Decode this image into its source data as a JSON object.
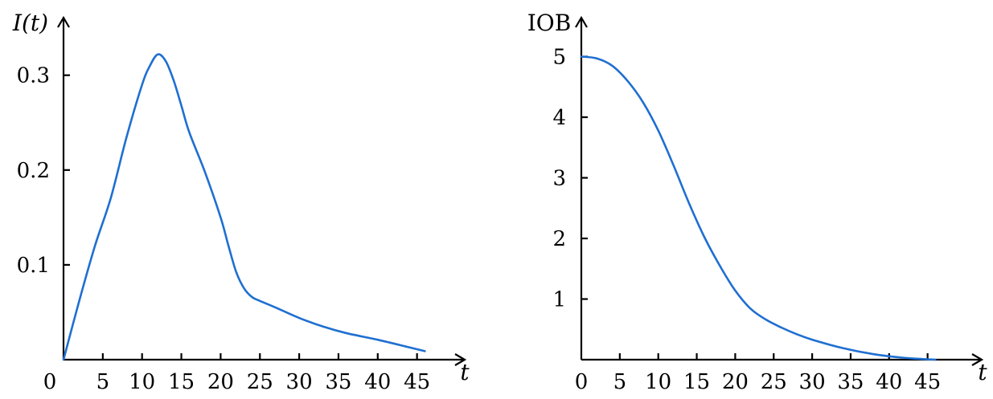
{
  "chart_data": [
    {
      "type": "line",
      "ylabel": "I(t)",
      "xlabel": "t",
      "origin_label": "0",
      "color": "#1f6fd1",
      "xlim": [
        0,
        48
      ],
      "ylim": [
        0,
        0.35
      ],
      "xticks": [
        5,
        10,
        15,
        20,
        25,
        30,
        35,
        40,
        45
      ],
      "xtick_labels": [
        "5",
        "10",
        "15",
        "20",
        "25",
        "30",
        "35",
        "40",
        "45"
      ],
      "yticks": [
        0.1,
        0.2,
        0.3
      ],
      "ytick_labels": [
        "0.1",
        "0.2",
        "0.3"
      ],
      "grid": false,
      "series": [
        {
          "x": [
            0,
            2,
            4,
            6,
            8,
            10,
            11,
            12,
            13,
            14,
            15,
            16,
            18,
            20,
            21,
            22,
            23,
            24,
            25,
            27,
            30,
            33,
            36,
            40,
            44,
            46
          ],
          "y": [
            0,
            0.062,
            0.12,
            0.17,
            0.234,
            0.29,
            0.31,
            0.322,
            0.315,
            0.295,
            0.268,
            0.24,
            0.198,
            0.15,
            0.12,
            0.092,
            0.075,
            0.066,
            0.062,
            0.055,
            0.044,
            0.035,
            0.028,
            0.021,
            0.013,
            0.009
          ]
        }
      ]
    },
    {
      "type": "line",
      "ylabel": "IOB",
      "xlabel": "t",
      "color": "#1f6fd1",
      "xlim": [
        0,
        48
      ],
      "ylim": [
        0,
        5.3
      ],
      "xticks": [
        0,
        5,
        10,
        15,
        20,
        25,
        30,
        35,
        40,
        45
      ],
      "xtick_labels": [
        "0",
        "5",
        "10",
        "15",
        "20",
        "25",
        "30",
        "35",
        "40",
        "45"
      ],
      "yticks": [
        1,
        2,
        3,
        4,
        5
      ],
      "ytick_labels": [
        "1",
        "2",
        "3",
        "4",
        "5"
      ],
      "grid": false,
      "series": [
        {
          "x": [
            0,
            2,
            4,
            6,
            8,
            10,
            12,
            14,
            16,
            18,
            20,
            22,
            24,
            26,
            28,
            30,
            34,
            38,
            42,
            46
          ],
          "y": [
            5.0,
            4.97,
            4.85,
            4.6,
            4.25,
            3.78,
            3.2,
            2.58,
            2.02,
            1.55,
            1.14,
            0.84,
            0.66,
            0.53,
            0.42,
            0.33,
            0.19,
            0.09,
            0.03,
            0.0
          ]
        }
      ]
    }
  ]
}
